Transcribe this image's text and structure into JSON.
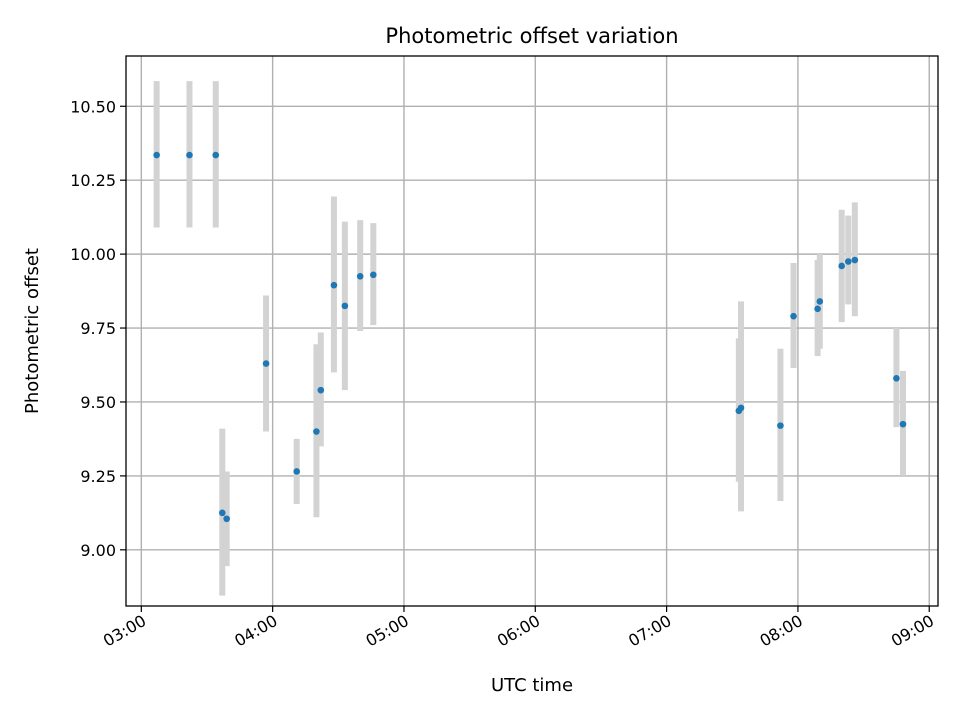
{
  "chart_data": {
    "type": "scatter",
    "title": "Photometric offset variation",
    "xlabel": "UTC time",
    "ylabel": "Photometric offset",
    "x_is_time": true,
    "xlim": [
      "02:53",
      "09:04"
    ],
    "ylim": [
      8.81,
      10.67
    ],
    "x_ticks": [
      "03:00",
      "04:00",
      "05:00",
      "06:00",
      "07:00",
      "08:00",
      "09:00"
    ],
    "y_ticks": [
      "9.00",
      "9.25",
      "9.50",
      "9.75",
      "10.00",
      "10.25",
      "10.50"
    ],
    "grid": true,
    "errorbar_color": "#d3d3d3",
    "marker_color": "#1f77b4",
    "points": [
      {
        "x": "03:07",
        "y": 10.335,
        "ylo": 10.09,
        "yhi": 10.585
      },
      {
        "x": "03:22",
        "y": 10.335,
        "ylo": 10.09,
        "yhi": 10.585
      },
      {
        "x": "03:34",
        "y": 10.335,
        "ylo": 10.09,
        "yhi": 10.585
      },
      {
        "x": "03:37",
        "y": 9.125,
        "ylo": 8.845,
        "yhi": 9.41
      },
      {
        "x": "03:39",
        "y": 9.105,
        "ylo": 8.945,
        "yhi": 9.265
      },
      {
        "x": "03:57",
        "y": 9.63,
        "ylo": 9.4,
        "yhi": 9.86
      },
      {
        "x": "04:11",
        "y": 9.265,
        "ylo": 9.155,
        "yhi": 9.375
      },
      {
        "x": "04:20",
        "y": 9.4,
        "ylo": 9.11,
        "yhi": 9.695
      },
      {
        "x": "04:22",
        "y": 9.54,
        "ylo": 9.35,
        "yhi": 9.735
      },
      {
        "x": "04:28",
        "y": 9.895,
        "ylo": 9.6,
        "yhi": 10.195
      },
      {
        "x": "04:33",
        "y": 9.825,
        "ylo": 9.54,
        "yhi": 10.11
      },
      {
        "x": "04:40",
        "y": 9.925,
        "ylo": 9.74,
        "yhi": 10.115
      },
      {
        "x": "04:46",
        "y": 9.93,
        "ylo": 9.76,
        "yhi": 10.105
      },
      {
        "x": "07:33",
        "y": 9.47,
        "ylo": 9.23,
        "yhi": 9.715
      },
      {
        "x": "07:34",
        "y": 9.48,
        "ylo": 9.13,
        "yhi": 9.84
      },
      {
        "x": "07:52",
        "y": 9.42,
        "ylo": 9.165,
        "yhi": 9.68
      },
      {
        "x": "07:58",
        "y": 9.79,
        "ylo": 9.615,
        "yhi": 9.97
      },
      {
        "x": "08:09",
        "y": 9.815,
        "ylo": 9.655,
        "yhi": 9.98
      },
      {
        "x": "08:10",
        "y": 9.84,
        "ylo": 9.68,
        "yhi": 10.0
      },
      {
        "x": "08:20",
        "y": 9.96,
        "ylo": 9.77,
        "yhi": 10.15
      },
      {
        "x": "08:23",
        "y": 9.975,
        "ylo": 9.83,
        "yhi": 10.13
      },
      {
        "x": "08:26",
        "y": 9.98,
        "ylo": 9.79,
        "yhi": 10.175
      },
      {
        "x": "08:45",
        "y": 9.58,
        "ylo": 9.415,
        "yhi": 9.75
      },
      {
        "x": "08:48",
        "y": 9.425,
        "ylo": 9.25,
        "yhi": 9.605
      }
    ]
  }
}
